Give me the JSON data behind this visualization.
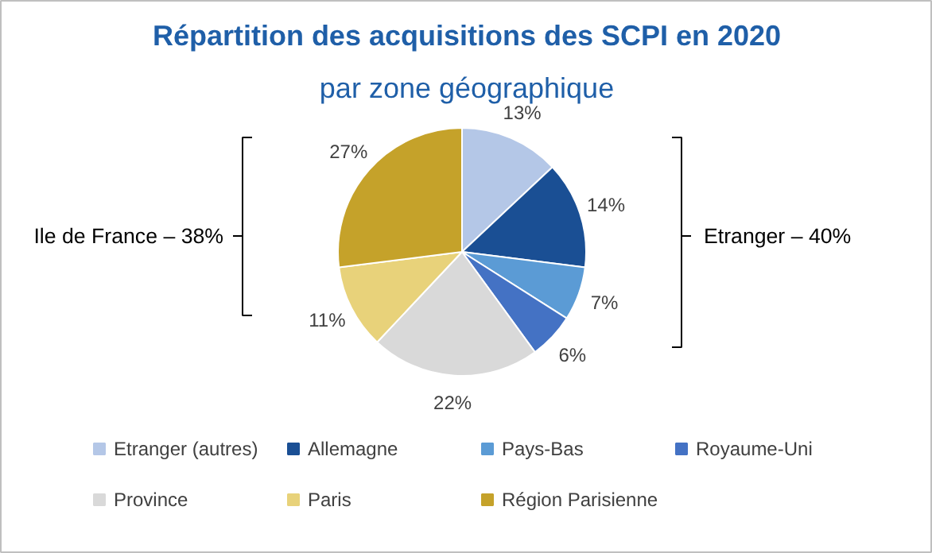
{
  "chart_data": {
    "type": "pie",
    "title": "Répartition des acquisitions des SCPI en 2020",
    "subtitle": "par zone géographique",
    "categories": [
      "Etranger (autres)",
      "Allemagne",
      "Pays-Bas",
      "Royaume-Uni",
      "Province",
      "Paris",
      "Région Parisienne"
    ],
    "values": [
      13,
      14,
      7,
      6,
      22,
      11,
      27
    ],
    "value_labels": [
      "13%",
      "14%",
      "7%",
      "6%",
      "22%",
      "11%",
      "27%"
    ],
    "colors": [
      "#b4c7e7",
      "#1a4f94",
      "#5b9bd5",
      "#4472c4",
      "#d9d9d9",
      "#e8d27a",
      "#c5a22a"
    ],
    "annotations": [
      "Ile de France – 38%",
      "Etranger – 40%"
    ],
    "legend": "bottom"
  }
}
